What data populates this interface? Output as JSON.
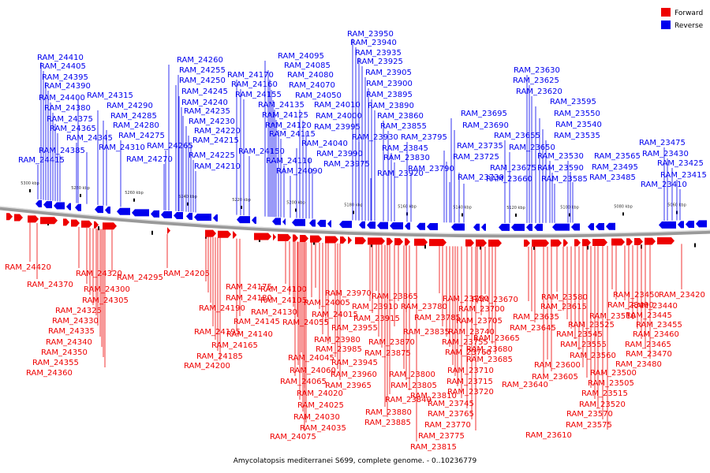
{
  "caption": "Amycolatopsis mediterranei S699, complete genome. - 0..10236779",
  "legend": [
    {
      "label": "Forward",
      "color": "#ee0000"
    },
    {
      "label": "Reverse",
      "color": "#0000ee"
    }
  ],
  "colors": {
    "forward": "#ee0000",
    "reverse": "#0000ee",
    "backbone": "#888888"
  },
  "kbp_marks": [
    "5300 kbp",
    "5280 kbp",
    "5260 kbp",
    "5240 kbp",
    "5220 kbp",
    "5200 kbp",
    "5180 kbp",
    "5160 kbp",
    "5140 kbp",
    "5120 kbp",
    "5100 kbp",
    "5080 kbp",
    "5060 kbp"
  ],
  "reverse_labels": [
    "RAM_24410",
    "RAM_24405",
    "RAM_24395",
    "RAM_24390",
    "RAM_24400",
    "RAM_24380",
    "RAM_24375",
    "RAM_24365",
    "RAM_24345",
    "RAM_24385",
    "RAM_24415",
    "RAM_24315",
    "RAM_24290",
    "RAM_24285",
    "RAM_24280",
    "RAM_24275",
    "RAM_24310",
    "RAM_24270",
    "RAM_24265",
    "RAM_24260",
    "RAM_24255",
    "RAM_24250",
    "RAM_24245",
    "RAM_24240",
    "RAM_24235",
    "RAM_24230",
    "RAM_24220",
    "RAM_24215",
    "RAM_24225",
    "RAM_24210",
    "RAM_24170",
    "RAM_24160",
    "RAM_24155",
    "RAM_24150",
    "RAM_24095",
    "RAM_24085",
    "RAM_24080",
    "RAM_24070",
    "RAM_24050",
    "RAM_24135",
    "RAM_24125",
    "RAM_24120",
    "RAM_24115",
    "RAM_24110",
    "RAM_24090",
    "RAM_24010",
    "RAM_24000",
    "RAM_23995",
    "RAM_24040",
    "RAM_23990",
    "RAM_23975",
    "RAM_23950",
    "RAM_23940",
    "RAM_23935",
    "RAM_23925",
    "RAM_23905",
    "RAM_23900",
    "RAM_23895",
    "RAM_23890",
    "RAM_23860",
    "RAM_23855",
    "RAM_23930",
    "RAM_23845",
    "RAM_23830",
    "RAM_23920",
    "RAM_23795",
    "RAM_23790",
    "RAM_23735",
    "RAM_23725",
    "RAM_23730",
    "RAM_23695",
    "RAM_23690",
    "RAM_23675",
    "RAM_23660",
    "RAM_23655",
    "RAM_23650",
    "RAM_23630",
    "RAM_23625",
    "RAM_23620",
    "RAM_23595",
    "RAM_23550",
    "RAM_23540",
    "RAM_23535",
    "RAM_23530",
    "RAM_23590",
    "RAM_23585",
    "RAM_23565",
    "RAM_23495",
    "RAM_23485",
    "RAM_23475",
    "RAM_23430",
    "RAM_23425",
    "RAM_23415",
    "RAM_23410",
    "RAM_23435"
  ],
  "forward_labels": [
    "RAM_24420",
    "RAM_24370",
    "RAM_24320",
    "RAM_24300",
    "RAM_24305",
    "RAM_24325",
    "RAM_24330",
    "RAM_24335",
    "RAM_24340",
    "RAM_24350",
    "RAM_24355",
    "RAM_24360",
    "RAM_24295",
    "RAM_24205",
    "RAM_24175",
    "RAM_24180",
    "RAM_24190",
    "RAM_24195",
    "RAM_24165",
    "RAM_24185",
    "RAM_24200",
    "RAM_24145",
    "RAM_24140",
    "RAM_24100",
    "RAM_24105",
    "RAM_24130",
    "RAM_24055",
    "RAM_24045",
    "RAM_24060",
    "RAM_24065",
    "RAM_24020",
    "RAM_24025",
    "RAM_24030",
    "RAM_24035",
    "RAM_24075",
    "RAM_23970",
    "RAM_24005",
    "RAM_24015",
    "RAM_23955",
    "RAM_23980",
    "RAM_23985",
    "RAM_23945",
    "RAM_23960",
    "RAM_23965",
    "RAM_23865",
    "RAM_23910",
    "RAM_23915",
    "RAM_23870",
    "RAM_23875",
    "RAM_23880",
    "RAM_23885",
    "RAM_23840",
    "RAM_23780",
    "RAM_23785",
    "RAM_23835",
    "RAM_23800",
    "RAM_23805",
    "RAM_23810",
    "RAM_23815",
    "RAM_23750",
    "RAM_23740",
    "RAM_23755",
    "RAM_23760",
    "RAM_23710",
    "RAM_23715",
    "RAM_23720",
    "RAM_23745",
    "RAM_23765",
    "RAM_23770",
    "RAM_23775",
    "RAM_23700",
    "RAM_23705",
    "RAM_23670",
    "RAM_23665",
    "RAM_23680",
    "RAM_23685",
    "RAM_23615",
    "RAM_23635",
    "RAM_23645",
    "RAM_23640",
    "RAM_23600",
    "RAM_23605",
    "RAM_23580",
    "RAM_23510",
    "RAM_23525",
    "RAM_23545",
    "RAM_23555",
    "RAM_23560",
    "RAM_23500",
    "RAM_23505",
    "RAM_23515",
    "RAM_23520",
    "RAM_23570",
    "RAM_23575",
    "RAM_23610",
    "RAM_23450",
    "RAM_23490",
    "RAM_23440",
    "RAM_23445",
    "RAM_23455",
    "RAM_23460",
    "RAM_23465",
    "RAM_23470",
    "RAM_23480",
    "RAM_23420"
  ]
}
